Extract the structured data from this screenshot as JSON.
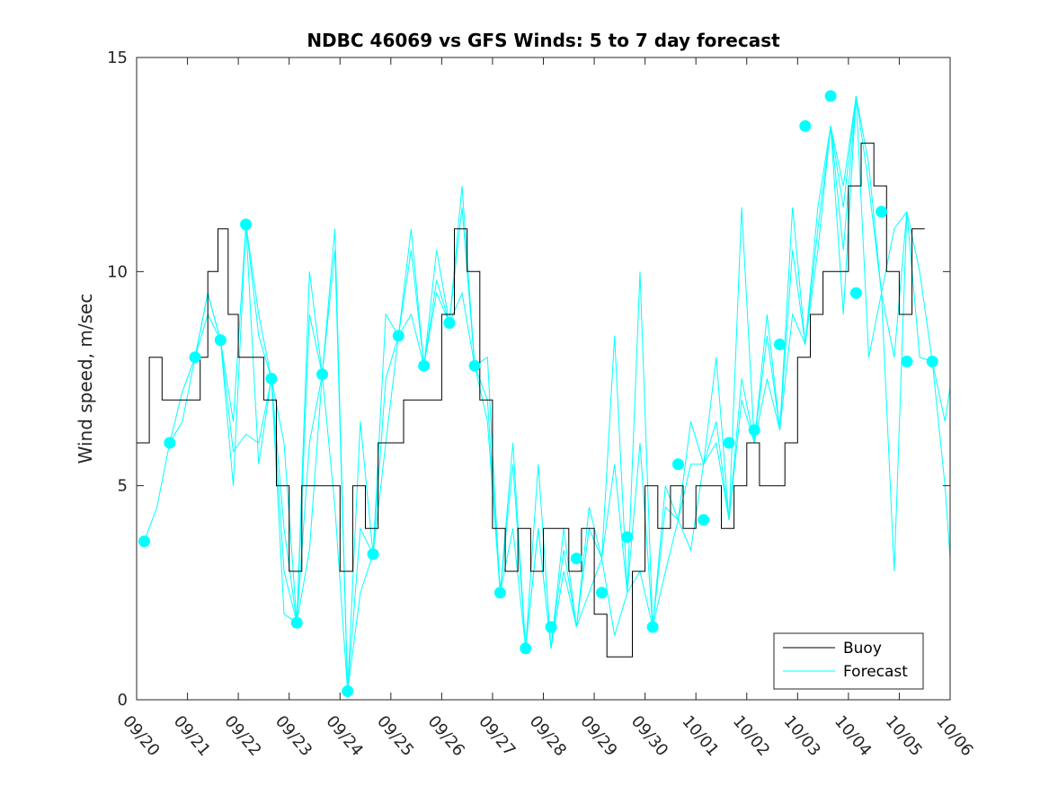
{
  "chart_data": {
    "type": "line",
    "title": "NDBC 46069 vs GFS Winds: 5 to 7 day forecast",
    "xlabel": "",
    "ylabel": "Wind speed, m/sec",
    "xlim": [
      0,
      16
    ],
    "ylim": [
      0,
      15
    ],
    "yticks": [
      0,
      5,
      10,
      15
    ],
    "xtick_labels": [
      "09/20",
      "09/21",
      "09/22",
      "09/23",
      "09/24",
      "09/25",
      "09/26",
      "09/27",
      "09/28",
      "09/29",
      "09/30",
      "10/01",
      "10/02",
      "10/03",
      "10/04",
      "10/05",
      "10/06"
    ],
    "legend": {
      "position": "bottom-right",
      "entries": [
        "Buoy",
        "Forecast"
      ]
    },
    "colors": {
      "buoy": "#000000",
      "forecast": "#00ffff",
      "axes": "#262626"
    },
    "buoy": {
      "name": "Buoy",
      "x": [
        0,
        0.25,
        0.5,
        0.75,
        1.0,
        1.25,
        1.4,
        1.6,
        1.8,
        2.0,
        2.25,
        2.5,
        2.75,
        3.0,
        3.25,
        3.5,
        3.75,
        4.0,
        4.25,
        4.5,
        4.75,
        5.0,
        5.25,
        5.5,
        5.75,
        6.0,
        6.25,
        6.5,
        6.75,
        7.0,
        7.25,
        7.5,
        7.75,
        8.0,
        8.25,
        8.5,
        8.75,
        9.0,
        9.25,
        9.5,
        9.75,
        10.0,
        10.25,
        10.5,
        10.75,
        11.0,
        11.25,
        11.5,
        11.75,
        12.0,
        12.25,
        12.5,
        12.75,
        13.0,
        13.25,
        13.5,
        13.75,
        14.0,
        14.25,
        14.5,
        14.75,
        15.0,
        15.25
      ],
      "y": [
        6,
        8,
        7,
        7,
        7,
        8,
        10,
        11,
        9,
        8,
        8,
        7,
        5,
        3,
        5,
        5,
        5,
        3,
        5,
        4,
        6,
        6,
        7,
        7,
        7,
        9,
        11,
        10,
        7,
        4,
        3,
        4,
        3,
        4,
        4,
        3,
        4,
        2,
        1,
        1,
        3,
        5,
        4,
        5,
        4,
        5,
        5,
        4,
        5,
        6,
        5,
        5,
        6,
        8,
        9,
        10,
        10,
        12,
        13,
        12,
        10,
        9,
        11
      ]
    },
    "forecast": {
      "name": "Forecast",
      "points_x": [
        0.15,
        0.65,
        1.15,
        1.65,
        2.15,
        2.65,
        3.15,
        3.65,
        4.15,
        4.65,
        5.15,
        5.65,
        6.15,
        6.65,
        7.15,
        7.65,
        8.15,
        8.65,
        9.15,
        9.65,
        10.15,
        10.65,
        11.15,
        11.65,
        12.15,
        12.65,
        13.15,
        13.65,
        14.15,
        14.65,
        15.15,
        15.65
      ],
      "points_y": [
        3.7,
        6.0,
        8.0,
        8.4,
        11.1,
        7.5,
        1.8,
        7.6,
        0.2,
        3.4,
        8.5,
        7.8,
        8.8,
        7.8,
        2.5,
        1.2,
        1.7,
        3.3,
        2.5,
        3.8,
        1.7,
        5.5,
        4.2,
        6.0,
        6.3,
        8.3,
        13.4,
        14.1,
        9.5,
        11.4,
        7.9,
        7.9
      ],
      "runs": [
        {
          "x": [
            0.15,
            0.4,
            0.65,
            0.9,
            1.15,
            1.4,
            1.65,
            1.9,
            2.15,
            2.4,
            2.65,
            2.9,
            3.15
          ],
          "y": [
            3.7,
            4.5,
            6.0,
            7.2,
            8.0,
            9.5,
            8.4,
            6.5,
            11.1,
            9.0,
            7.5,
            6.0,
            1.8
          ]
        },
        {
          "x": [
            0.65,
            0.9,
            1.15,
            1.4,
            1.65,
            1.9,
            2.15,
            2.4,
            2.65,
            2.9,
            3.15,
            3.4,
            3.65
          ],
          "y": [
            6.0,
            6.5,
            8.0,
            9.0,
            8.4,
            5.0,
            11.1,
            5.5,
            7.5,
            2.0,
            1.8,
            6.0,
            7.6
          ]
        },
        {
          "x": [
            1.15,
            1.4,
            1.65,
            1.9,
            2.15,
            2.4,
            2.65,
            2.9,
            3.15,
            3.4,
            3.65,
            3.9,
            4.15
          ],
          "y": [
            8.0,
            9.5,
            8.4,
            5.8,
            6.2,
            6.0,
            7.5,
            3.0,
            1.8,
            9.0,
            7.6,
            10.5,
            0.2
          ]
        },
        {
          "x": [
            2.15,
            2.4,
            2.65,
            2.9,
            3.15,
            3.4,
            3.65,
            3.9,
            4.15,
            4.4,
            4.65,
            4.9,
            5.15
          ],
          "y": [
            11.1,
            8.5,
            7.5,
            4.0,
            1.8,
            3.5,
            7.6,
            4.5,
            0.2,
            2.5,
            3.4,
            6.0,
            8.5
          ]
        },
        {
          "x": [
            3.15,
            3.4,
            3.65,
            3.9,
            4.15,
            4.4,
            4.65,
            4.9,
            5.15,
            5.4,
            5.65,
            5.9,
            6.15
          ],
          "y": [
            1.8,
            10.0,
            7.6,
            11.0,
            0.2,
            6.5,
            3.4,
            9.0,
            8.5,
            11.0,
            7.8,
            9.5,
            8.8
          ]
        },
        {
          "x": [
            4.15,
            4.4,
            4.65,
            4.9,
            5.15,
            5.4,
            5.65,
            5.9,
            6.15,
            6.4,
            6.65,
            6.9,
            7.15
          ],
          "y": [
            0.2,
            4.0,
            3.4,
            7.5,
            8.5,
            10.5,
            7.8,
            10.5,
            8.8,
            12.0,
            7.8,
            8.0,
            2.5
          ]
        },
        {
          "x": [
            5.15,
            5.4,
            5.65,
            5.9,
            6.15,
            6.4,
            6.65,
            6.9,
            7.15,
            7.4,
            7.65,
            7.9,
            8.15
          ],
          "y": [
            8.5,
            9.0,
            7.8,
            9.8,
            8.8,
            11.5,
            7.8,
            6.5,
            2.5,
            5.5,
            1.2,
            4.0,
            1.2
          ]
        },
        {
          "x": [
            6.15,
            6.4,
            6.65,
            6.9,
            7.15,
            7.4,
            7.65,
            7.9,
            8.15,
            8.4,
            8.65,
            8.9,
            9.15
          ],
          "y": [
            8.8,
            9.5,
            7.8,
            7.0,
            2.5,
            6.0,
            1.2,
            4.0,
            1.2,
            3.5,
            1.7,
            4.5,
            3.3
          ]
        },
        {
          "x": [
            7.15,
            7.4,
            7.65,
            7.9,
            8.15,
            8.4,
            8.65,
            8.9,
            9.15,
            9.4,
            9.65,
            9.9,
            10.15
          ],
          "y": [
            2.5,
            4.0,
            1.2,
            5.5,
            1.2,
            4.0,
            1.7,
            2.5,
            3.3,
            8.5,
            2.5,
            10.0,
            1.7
          ]
        },
        {
          "x": [
            8.15,
            8.4,
            8.65,
            8.9,
            9.15,
            9.4,
            9.65,
            9.9,
            10.15,
            10.4,
            10.65,
            10.9,
            11.15
          ],
          "y": [
            1.2,
            3.0,
            1.7,
            4.0,
            3.3,
            1.5,
            2.5,
            3.0,
            1.7,
            4.5,
            4.2,
            3.5,
            5.5
          ]
        },
        {
          "x": [
            9.15,
            9.4,
            9.65,
            9.9,
            10.15,
            10.4,
            10.65,
            10.9,
            11.15,
            11.4,
            11.65,
            11.9,
            12.15
          ],
          "y": [
            3.3,
            5.5,
            2.5,
            6.0,
            1.7,
            5.0,
            4.2,
            6.5,
            5.5,
            8.0,
            4.2,
            11.5,
            6.0
          ]
        },
        {
          "x": [
            10.15,
            10.4,
            10.65,
            10.9,
            11.15,
            11.4,
            11.65,
            11.9,
            12.15,
            12.4,
            12.65,
            12.9,
            13.15
          ],
          "y": [
            1.7,
            3.0,
            4.2,
            5.5,
            5.5,
            6.5,
            4.2,
            7.5,
            6.0,
            8.5,
            6.3,
            11.5,
            8.3
          ]
        },
        {
          "x": [
            11.15,
            11.4,
            11.65,
            11.9,
            12.15,
            12.4,
            12.65,
            12.9,
            13.15,
            13.4,
            13.65,
            13.9,
            14.15
          ],
          "y": [
            5.5,
            6.0,
            4.2,
            7.0,
            6.0,
            9.0,
            6.3,
            10.5,
            8.3,
            10.5,
            13.4,
            12.0,
            14.1
          ]
        },
        {
          "x": [
            12.15,
            12.4,
            12.65,
            12.9,
            13.15,
            13.4,
            13.65,
            13.9,
            14.15,
            14.4,
            14.65,
            14.9,
            15.15
          ],
          "y": [
            6.0,
            7.5,
            6.3,
            9.0,
            8.3,
            11.5,
            13.4,
            11.5,
            14.1,
            8.0,
            9.5,
            11.0,
            11.4
          ]
        },
        {
          "x": [
            13.15,
            13.4,
            13.65,
            13.9,
            14.15,
            14.4,
            14.65,
            14.9,
            15.15,
            15.4,
            15.65,
            15.9,
            16.0
          ],
          "y": [
            8.3,
            11.0,
            13.4,
            10.5,
            14.1,
            12.5,
            9.5,
            3.0,
            11.4,
            8.0,
            7.9,
            6.5,
            7.3
          ]
        },
        {
          "x": [
            13.65,
            13.9,
            14.15,
            14.4,
            14.65,
            14.9,
            15.15,
            15.4,
            15.65,
            15.9,
            16.0
          ],
          "y": [
            13.4,
            9.0,
            14.1,
            12.0,
            9.5,
            8.0,
            11.4,
            10.0,
            7.9,
            5.0,
            3.3
          ]
        }
      ]
    }
  }
}
